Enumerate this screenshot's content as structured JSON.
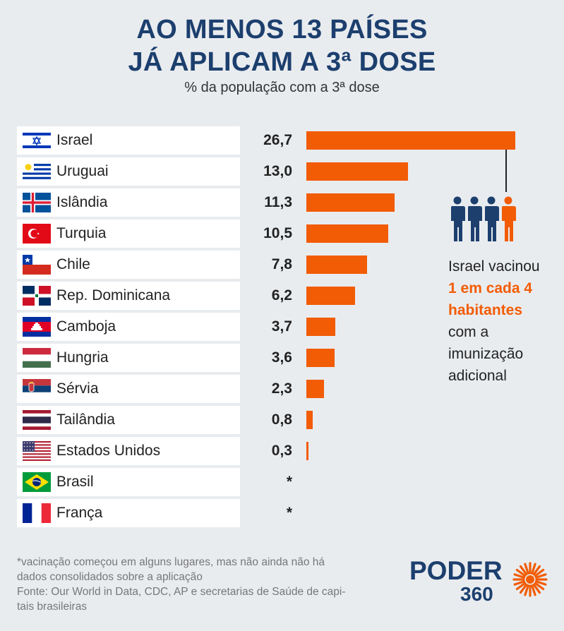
{
  "header": {
    "title_line1": "AO MENOS 13 PAÍSES",
    "title_line2": "JÁ APLICAM A 3ª DOSE",
    "subtitle": "% da população com a 3ª dose"
  },
  "chart_data": {
    "type": "bar",
    "orientation": "horizontal",
    "title": "AO MENOS 13 PAÍSES JÁ APLICAM A 3ª DOSE",
    "subtitle": "% da população com a 3ª dose",
    "xlim": [
      0,
      26.7
    ],
    "categories": [
      "Israel",
      "Uruguai",
      "Islândia",
      "Turquia",
      "Chile",
      "Rep. Dominicana",
      "Camboja",
      "Hungria",
      "Sérvia",
      "Tailândia",
      "Estados Unidos",
      "Brasil",
      "França"
    ],
    "values": [
      26.7,
      13.0,
      11.3,
      10.5,
      7.8,
      6.2,
      3.7,
      3.6,
      2.3,
      0.8,
      0.3,
      null,
      null
    ],
    "labels": [
      "26,7",
      "13,0",
      "11,3",
      "10,5",
      "7,8",
      "6,2",
      "3,7",
      "3,6",
      "2,3",
      "0,8",
      "0,3",
      "*",
      "*"
    ],
    "bar_color": "#f25c05"
  },
  "flags": [
    "israel-flag-icon",
    "uruguay-flag-icon",
    "iceland-flag-icon",
    "turkey-flag-icon",
    "chile-flag-icon",
    "dominican-republic-flag-icon",
    "cambodia-flag-icon",
    "hungary-flag-icon",
    "serbia-flag-icon",
    "thailand-flag-icon",
    "usa-flag-icon",
    "brazil-flag-icon",
    "france-flag-icon"
  ],
  "annotation": {
    "line1": "Israel vacinou",
    "highlight1": "1 em cada 4",
    "highlight2": "habitantes",
    "line2": "com a",
    "line3": "imunização",
    "line4": "adicional",
    "icon": "people-icon"
  },
  "footnote": {
    "line1": "*vacinação começou em alguns lugares, mas não ainda não há",
    "line2": "dados consolidados sobre a aplicação",
    "line3": "Fonte: Our World in Data, CDC, AP e secretarias de Saúde de capi-",
    "line4": "tais brasileiras"
  },
  "logo": {
    "top": "PODER",
    "bottom": "360"
  },
  "colors": {
    "title": "#1c3f6e",
    "accent": "#f25c05",
    "background": "#e9ecef"
  }
}
